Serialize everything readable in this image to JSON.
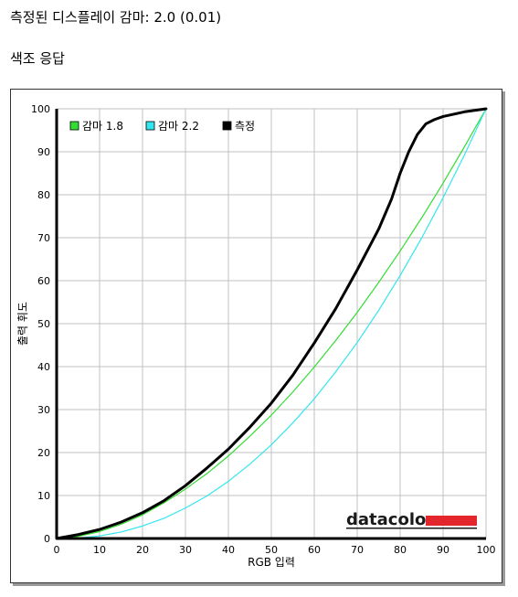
{
  "header": {
    "measured_gamma": "측정된 디스플레이 감마: 2.0 (0.01)",
    "section_title": "색조 응답"
  },
  "brand": {
    "logo_text": "datacolor",
    "colors": {
      "text": "#1a1a1a",
      "bar": "#e3262b"
    }
  },
  "colors": {
    "gamma18": "#33dd33",
    "gamma22": "#33e6ee",
    "measured": "#000000",
    "grid": "#c0c0c0",
    "background": "#ffffff"
  },
  "chart_data": {
    "type": "line",
    "title": "",
    "xlabel": "RGB 입력",
    "ylabel": "출력 휘도",
    "xlim": [
      0,
      100
    ],
    "ylim": [
      0,
      100
    ],
    "xticks": [
      0,
      10,
      20,
      30,
      40,
      50,
      60,
      70,
      80,
      90,
      100
    ],
    "yticks": [
      0,
      10,
      20,
      30,
      40,
      50,
      60,
      70,
      80,
      90,
      100
    ],
    "grid": true,
    "legend_position": "top-left",
    "series": [
      {
        "name": "감마 1.8",
        "color": "#33dd33",
        "x": [
          0,
          5,
          10,
          15,
          20,
          25,
          30,
          35,
          40,
          45,
          50,
          55,
          60,
          65,
          70,
          75,
          80,
          85,
          90,
          95,
          100
        ],
        "y": [
          0,
          0.5,
          1.6,
          3.3,
          5.5,
          8.3,
          11.5,
          15.1,
          19.2,
          23.8,
          28.7,
          34.1,
          39.9,
          46.1,
          52.6,
          59.6,
          66.9,
          74.6,
          82.7,
          91.2,
          100
        ]
      },
      {
        "name": "감마 2.2",
        "color": "#33e6ee",
        "x": [
          0,
          5,
          10,
          15,
          20,
          25,
          30,
          35,
          40,
          45,
          50,
          55,
          60,
          65,
          70,
          75,
          80,
          85,
          90,
          95,
          100
        ],
        "y": [
          0,
          0.1,
          0.6,
          1.5,
          2.9,
          4.7,
          7.1,
          9.9,
          13.3,
          17.3,
          21.8,
          26.9,
          32.5,
          38.8,
          45.6,
          53.1,
          61.2,
          69.9,
          79.3,
          89.3,
          100
        ]
      },
      {
        "name": "측정",
        "color": "#000000",
        "x": [
          0,
          5,
          10,
          15,
          20,
          25,
          30,
          35,
          40,
          45,
          50,
          55,
          60,
          65,
          70,
          75,
          78,
          80,
          82,
          84,
          86,
          88,
          90,
          95,
          100
        ],
        "y": [
          0,
          0.9,
          2.1,
          3.8,
          6.0,
          8.8,
          12.3,
          16.4,
          20.8,
          25.9,
          31.5,
          38.0,
          45.5,
          53.5,
          62.5,
          72.0,
          79.0,
          85.0,
          90.0,
          94.0,
          96.5,
          97.5,
          98.2,
          99.3,
          100
        ]
      }
    ]
  }
}
